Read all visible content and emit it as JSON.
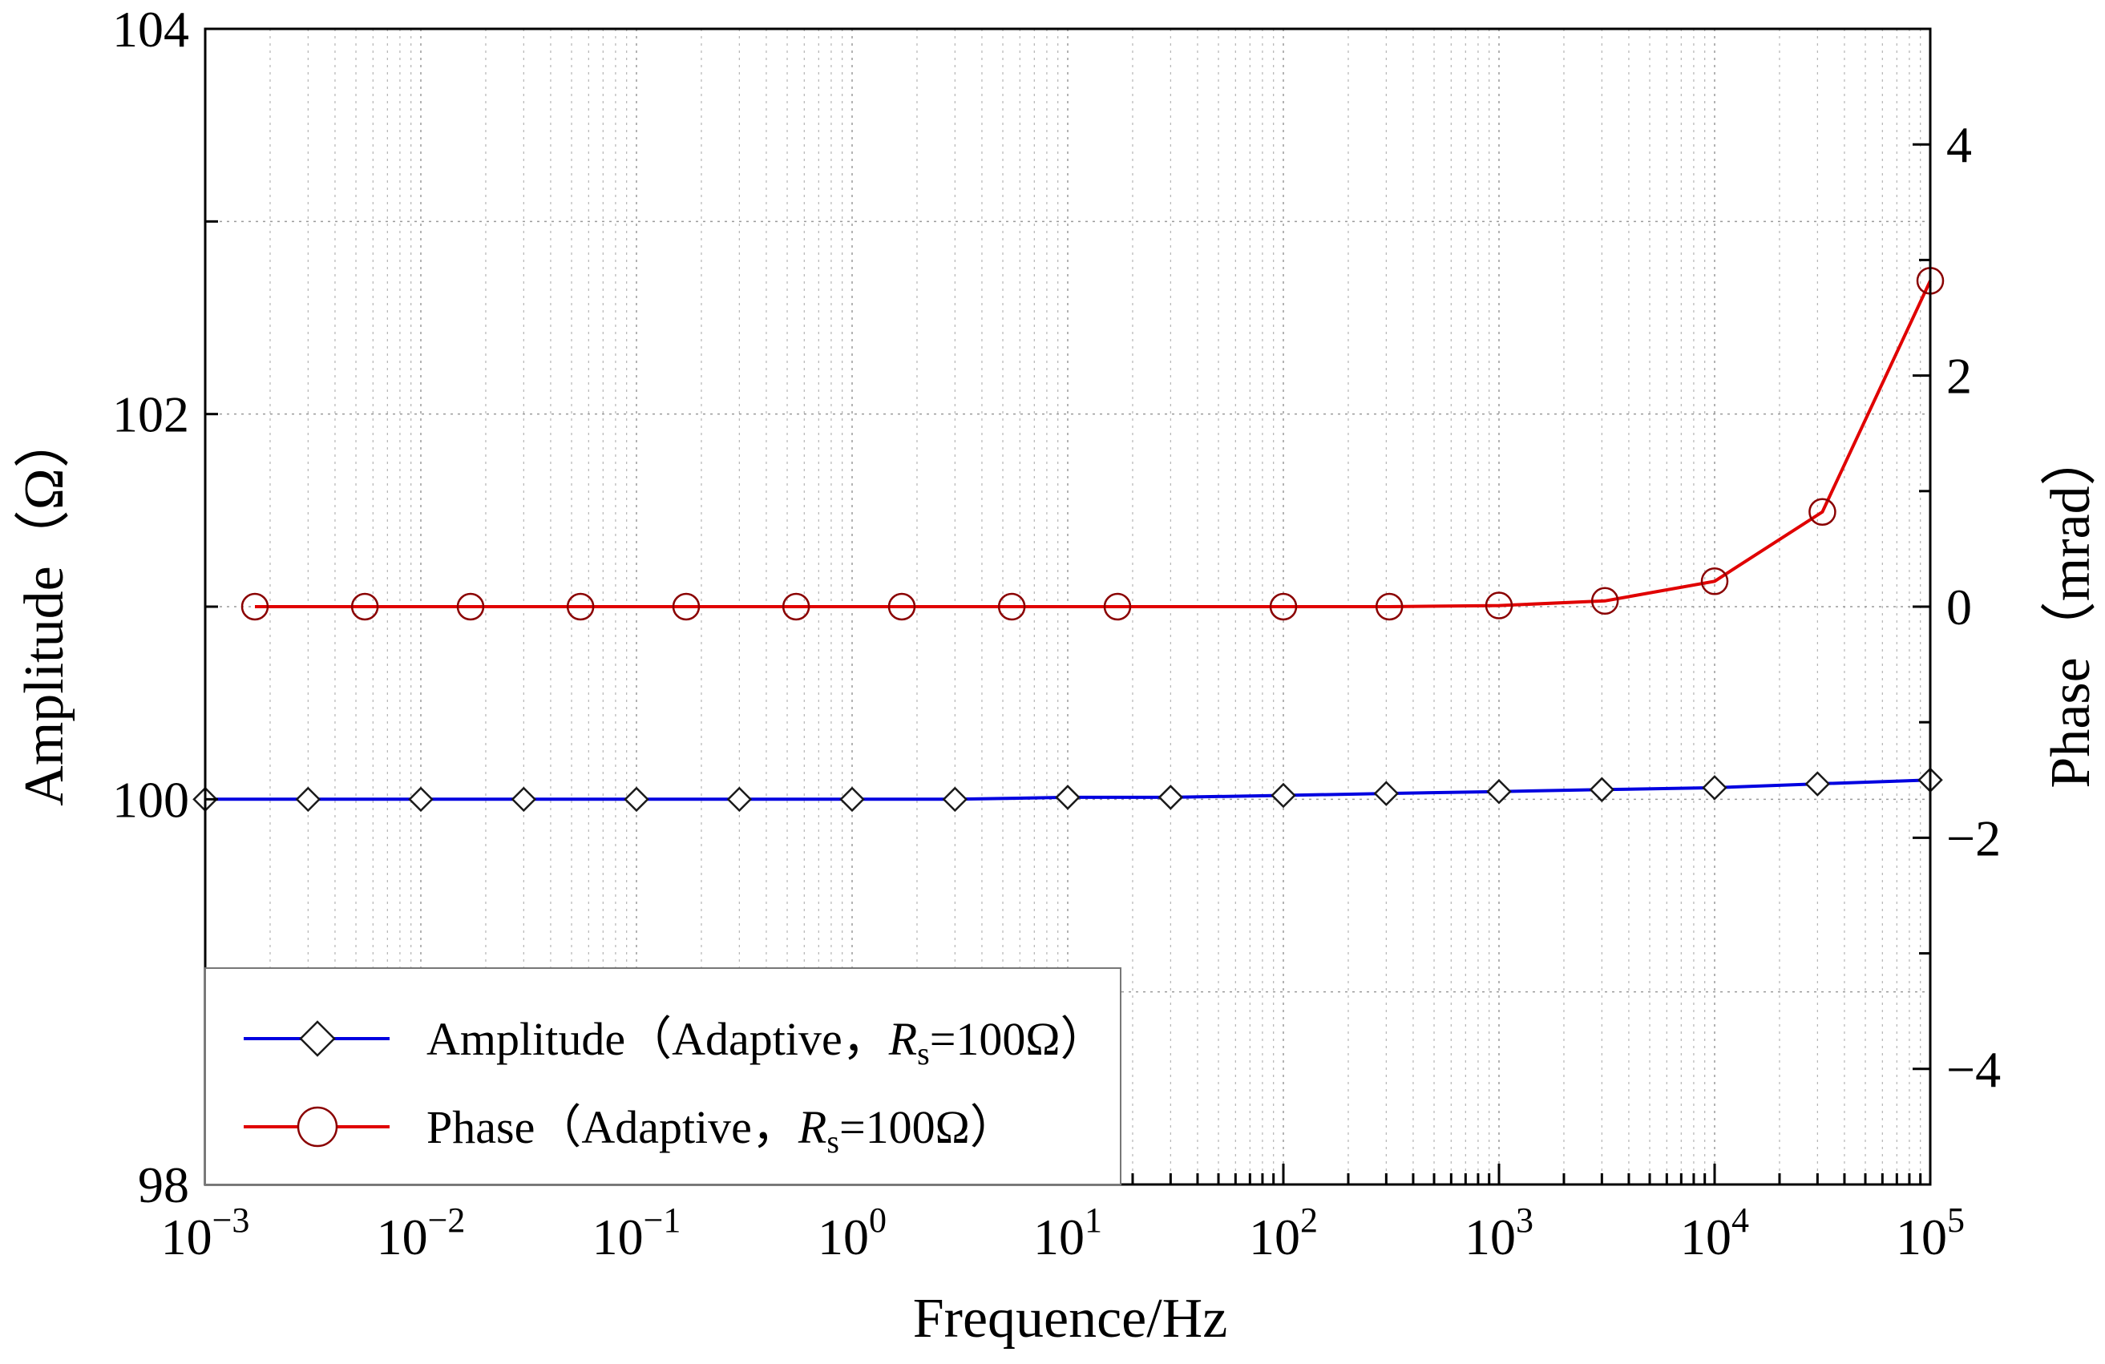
{
  "chart_data": {
    "type": "line",
    "xlabel": "Frequence/Hz",
    "ylabel_left": "Amplitude（Ω）",
    "ylabel_right": "Phase（mrad）",
    "x_scale": "log",
    "xlim": [
      0.001,
      100000
    ],
    "ylim_left": [
      98,
      104
    ],
    "ylim_right": [
      -5,
      5
    ],
    "grid": true,
    "x_ticks": [
      {
        "value": 0.001,
        "base": "10",
        "exp": "−3"
      },
      {
        "value": 0.01,
        "base": "10",
        "exp": "−2"
      },
      {
        "value": 0.1,
        "base": "10",
        "exp": "−1"
      },
      {
        "value": 1,
        "base": "10",
        "exp": "0"
      },
      {
        "value": 10,
        "base": "10",
        "exp": "1"
      },
      {
        "value": 100,
        "base": "10",
        "exp": "2"
      },
      {
        "value": 1000,
        "base": "10",
        "exp": "3"
      },
      {
        "value": 10000,
        "base": "10",
        "exp": "4"
      },
      {
        "value": 100000,
        "base": "10",
        "exp": "5"
      }
    ],
    "y_ticks_left": [
      {
        "value": 98,
        "label": "98"
      },
      {
        "value": 100,
        "label": "100"
      },
      {
        "value": 102,
        "label": "102"
      },
      {
        "value": 104,
        "label": "104"
      }
    ],
    "y_ticks_right": [
      {
        "value": -4,
        "label": "−4"
      },
      {
        "value": -2,
        "label": "−2"
      },
      {
        "value": 0,
        "label": "0"
      },
      {
        "value": 2,
        "label": "2"
      },
      {
        "value": 4,
        "label": "4"
      }
    ],
    "series": [
      {
        "name": "Amplitude（Adaptive，Rs=100Ω）",
        "legend_main": "Amplitude（Adaptive，",
        "legend_var": "R",
        "legend_sub": "s",
        "legend_tail": "=100Ω）",
        "axis": "left",
        "color": "#0000e0",
        "marker": "diamond",
        "x": [
          0.001,
          0.003,
          0.01,
          0.03,
          0.1,
          0.3,
          1,
          3,
          10,
          30,
          100,
          300,
          1000,
          3000,
          10000,
          30000,
          100000
        ],
        "y": [
          100.0,
          100.0,
          100.0,
          100.0,
          100.0,
          100.0,
          100.0,
          100.0,
          100.01,
          100.01,
          100.02,
          100.03,
          100.04,
          100.05,
          100.06,
          100.08,
          100.1
        ]
      },
      {
        "name": "Phase（Adaptive，Rs=100Ω）",
        "legend_main": "Phase（Adaptive，",
        "legend_var": "R",
        "legend_sub": "s",
        "legend_tail": "=100Ω）",
        "axis": "right",
        "color": "#e00000",
        "marker": "circle",
        "x": [
          0.0017,
          0.0055,
          0.017,
          0.055,
          0.17,
          0.55,
          1.7,
          5.5,
          17,
          100,
          310,
          1000,
          3100,
          10000,
          31600,
          100000
        ],
        "y": [
          0,
          0,
          0,
          0,
          0,
          0,
          0,
          0,
          0,
          0,
          0,
          0.01,
          0.05,
          0.22,
          0.82,
          2.82
        ]
      }
    ]
  }
}
